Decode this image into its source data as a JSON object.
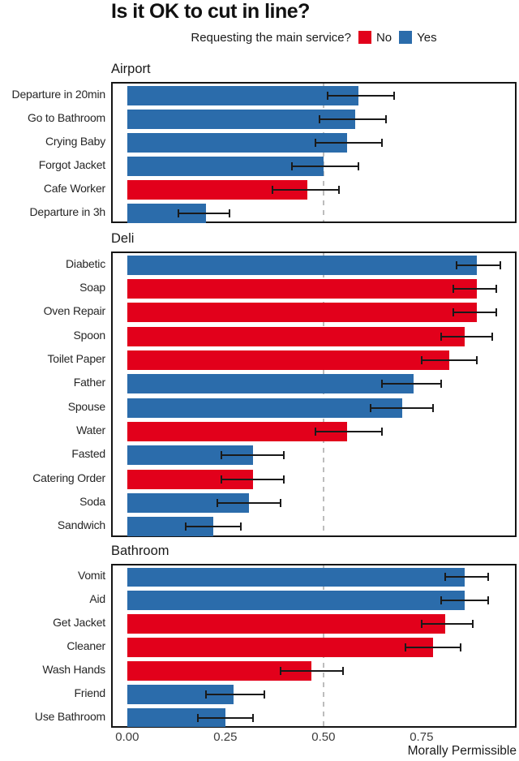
{
  "title": "Is it OK to cut in line?",
  "legend": {
    "label": "Requesting the main service?",
    "items": [
      {
        "label": "No",
        "color": "#E2001B"
      },
      {
        "label": "Yes",
        "color": "#2B6CAB"
      }
    ]
  },
  "xlabel": "Morally Permissible",
  "colors": {
    "no": "#E2001B",
    "yes": "#2B6CAB",
    "reference_line": "#BDBDBD",
    "panel_border": "#151515",
    "error_bar": "#1A1A1A"
  },
  "chart_data": {
    "type": "bar",
    "orientation": "horizontal",
    "xlim": [
      -0.037,
      0.988
    ],
    "x_ticks": [
      0,
      0.25,
      0.5,
      0.75
    ],
    "x_tick_labels": [
      "0.00",
      "0.25",
      "0.50",
      "0.75"
    ],
    "reference_line": 0.5,
    "grid": false,
    "legend_position": "top",
    "facets": [
      {
        "name": "Airport",
        "rows": [
          {
            "label": "Departure in 20min",
            "series": "Yes",
            "value": 0.59,
            "ci": [
              0.51,
              0.68
            ]
          },
          {
            "label": "Go to Bathroom",
            "series": "Yes",
            "value": 0.58,
            "ci": [
              0.49,
              0.66
            ]
          },
          {
            "label": "Crying Baby",
            "series": "Yes",
            "value": 0.56,
            "ci": [
              0.48,
              0.65
            ]
          },
          {
            "label": "Forgot Jacket",
            "series": "Yes",
            "value": 0.5,
            "ci": [
              0.42,
              0.59
            ]
          },
          {
            "label": "Cafe Worker",
            "series": "No",
            "value": 0.46,
            "ci": [
              0.37,
              0.54
            ]
          },
          {
            "label": "Departure in 3h",
            "series": "Yes",
            "value": 0.2,
            "ci": [
              0.13,
              0.26
            ]
          }
        ]
      },
      {
        "name": "Deli",
        "rows": [
          {
            "label": "Diabetic",
            "series": "Yes",
            "value": 0.89,
            "ci": [
              0.84,
              0.95
            ]
          },
          {
            "label": "Soap",
            "series": "No",
            "value": 0.89,
            "ci": [
              0.83,
              0.94
            ]
          },
          {
            "label": "Oven Repair",
            "series": "No",
            "value": 0.89,
            "ci": [
              0.83,
              0.94
            ]
          },
          {
            "label": "Spoon",
            "series": "No",
            "value": 0.86,
            "ci": [
              0.8,
              0.93
            ]
          },
          {
            "label": "Toilet Paper",
            "series": "No",
            "value": 0.82,
            "ci": [
              0.75,
              0.89
            ]
          },
          {
            "label": "Father",
            "series": "Yes",
            "value": 0.73,
            "ci": [
              0.65,
              0.8
            ]
          },
          {
            "label": "Spouse",
            "series": "Yes",
            "value": 0.7,
            "ci": [
              0.62,
              0.78
            ]
          },
          {
            "label": "Water",
            "series": "No",
            "value": 0.56,
            "ci": [
              0.48,
              0.65
            ]
          },
          {
            "label": "Fasted",
            "series": "Yes",
            "value": 0.32,
            "ci": [
              0.24,
              0.4
            ]
          },
          {
            "label": "Catering Order",
            "series": "No",
            "value": 0.32,
            "ci": [
              0.24,
              0.4
            ]
          },
          {
            "label": "Soda",
            "series": "Yes",
            "value": 0.31,
            "ci": [
              0.23,
              0.39
            ]
          },
          {
            "label": "Sandwich",
            "series": "Yes",
            "value": 0.22,
            "ci": [
              0.15,
              0.29
            ]
          }
        ]
      },
      {
        "name": "Bathroom",
        "rows": [
          {
            "label": "Vomit",
            "series": "Yes",
            "value": 0.86,
            "ci": [
              0.81,
              0.92
            ]
          },
          {
            "label": "Aid",
            "series": "Yes",
            "value": 0.86,
            "ci": [
              0.8,
              0.92
            ]
          },
          {
            "label": "Get Jacket",
            "series": "No",
            "value": 0.81,
            "ci": [
              0.75,
              0.88
            ]
          },
          {
            "label": "Cleaner",
            "series": "No",
            "value": 0.78,
            "ci": [
              0.71,
              0.85
            ]
          },
          {
            "label": "Wash Hands",
            "series": "No",
            "value": 0.47,
            "ci": [
              0.39,
              0.55
            ]
          },
          {
            "label": "Friend",
            "series": "Yes",
            "value": 0.27,
            "ci": [
              0.2,
              0.35
            ]
          },
          {
            "label": "Use Bathroom",
            "series": "Yes",
            "value": 0.25,
            "ci": [
              0.18,
              0.32
            ]
          }
        ]
      }
    ]
  }
}
